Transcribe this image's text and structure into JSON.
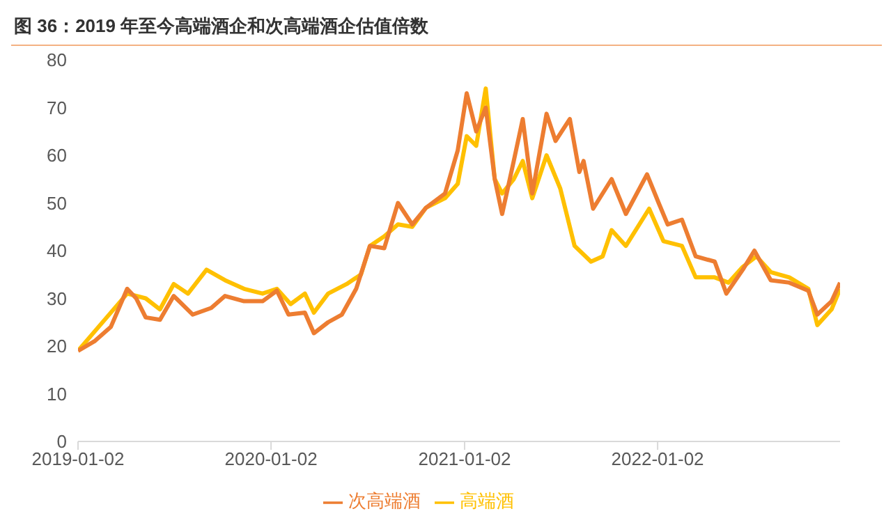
{
  "chart_data": {
    "type": "line",
    "title": "图 36：2019 年至今高端酒企和次高端酒企估值倍数",
    "xlim": [
      "2019-01-02",
      "2022-12-13"
    ],
    "xticks": [
      "2019-01-02",
      "2020-01-02",
      "2021-01-02",
      "2022-01-02"
    ],
    "ylim": [
      0,
      80
    ],
    "yticks": [
      0,
      10,
      20,
      30,
      40,
      50,
      60,
      70,
      80
    ],
    "grid": false,
    "legend": "bottom",
    "marker": "none",
    "line_style": "solid",
    "series": [
      {
        "name": "高端酒",
        "color": "#ffc000",
        "x": [
          "2019-01-02",
          "2019-04-05",
          "2019-05-10",
          "2019-06-06",
          "2019-07-02",
          "2019-07-29",
          "2019-09-02",
          "2019-10-07",
          "2019-11-12",
          "2019-12-17",
          "2020-01-13",
          "2020-02-08",
          "2020-03-06",
          "2020-03-23",
          "2020-04-19",
          "2020-05-24",
          "2020-06-20",
          "2020-07-07",
          "2020-08-03",
          "2020-08-29",
          "2020-09-25",
          "2020-10-21",
          "2020-11-26",
          "2020-12-20",
          "2021-01-06",
          "2021-01-24",
          "2021-02-11",
          "2021-02-28",
          "2021-03-14",
          "2021-04-05",
          "2021-04-22",
          "2021-05-10",
          "2021-06-06",
          "2021-07-02",
          "2021-07-29",
          "2021-08-29",
          "2021-09-20",
          "2021-10-07",
          "2021-11-03",
          "2021-12-17",
          "2022-01-13",
          "2022-02-17",
          "2022-03-15",
          "2022-04-20",
          "2022-05-16",
          "2022-06-12",
          "2022-07-08",
          "2022-08-04",
          "2022-09-08",
          "2022-10-14",
          "2022-10-31",
          "2022-11-27",
          "2022-12-13"
        ],
        "values": [
          19,
          31,
          30,
          27.7,
          33,
          31,
          36,
          33.8,
          32,
          31,
          32,
          28.8,
          31,
          27,
          31,
          33,
          35,
          41,
          43,
          45.5,
          45,
          49,
          51,
          54,
          64,
          62,
          74,
          55,
          52,
          55,
          58.8,
          51,
          60,
          53,
          41,
          37.7,
          38.8,
          44.3,
          41,
          48.8,
          42,
          41,
          34.4,
          34.4,
          33.3,
          36.6,
          38.8,
          35.5,
          34.4,
          32,
          24.4,
          27.7,
          32
        ]
      },
      {
        "name": "次高端酒",
        "color": "#ed7d31",
        "x": [
          "2019-01-02",
          "2019-02-02",
          "2019-03-05",
          "2019-04-05",
          "2019-04-22",
          "2019-05-10",
          "2019-06-06",
          "2019-07-02",
          "2019-08-07",
          "2019-09-11",
          "2019-10-07",
          "2019-11-12",
          "2019-12-17",
          "2020-01-13",
          "2020-02-04",
          "2020-03-06",
          "2020-03-23",
          "2020-04-19",
          "2020-05-15",
          "2020-06-11",
          "2020-07-07",
          "2020-08-03",
          "2020-08-29",
          "2020-09-25",
          "2020-10-21",
          "2020-11-26",
          "2020-12-20",
          "2021-01-06",
          "2021-01-24",
          "2021-02-11",
          "2021-02-28",
          "2021-03-14",
          "2021-04-05",
          "2021-04-22",
          "2021-05-10",
          "2021-06-06",
          "2021-06-23",
          "2021-07-20",
          "2021-08-07",
          "2021-08-15",
          "2021-09-02",
          "2021-10-07",
          "2021-11-03",
          "2021-12-13",
          "2022-01-04",
          "2022-01-21",
          "2022-02-17",
          "2022-03-15",
          "2022-04-20",
          "2022-05-12",
          "2022-06-12",
          "2022-07-04",
          "2022-08-04",
          "2022-09-08",
          "2022-10-14",
          "2022-10-31",
          "2022-11-27",
          "2022-12-13"
        ],
        "values": [
          19,
          21,
          24,
          32,
          30,
          26,
          25.5,
          30.5,
          26.6,
          28,
          30.5,
          29.4,
          29.4,
          31.6,
          26.6,
          27,
          22.7,
          25,
          26.6,
          32,
          41,
          40.5,
          50,
          45.5,
          49,
          52,
          61,
          73,
          65,
          70,
          55,
          47.7,
          58.8,
          67.6,
          52,
          68.7,
          63,
          67.6,
          56.5,
          58.8,
          48.8,
          55,
          47.7,
          56,
          50,
          45.5,
          46.5,
          38.8,
          37.7,
          31,
          36,
          40,
          33.8,
          33.3,
          31.6,
          26.6,
          29.4,
          33.3
        ]
      }
    ]
  }
}
